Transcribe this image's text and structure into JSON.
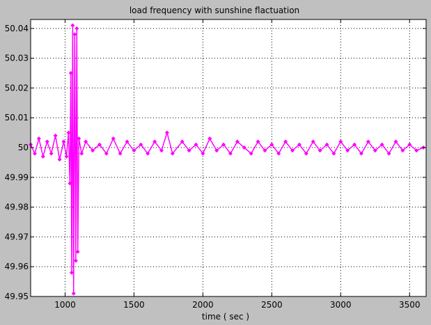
{
  "chart_data": {
    "type": "line",
    "title": "load frequency with sunshine flactuation",
    "xlabel": "time ( sec )",
    "ylabel": "",
    "xlim": [
      750,
      3620
    ],
    "ylim": [
      49.95,
      50.043
    ],
    "xticks": [
      1000,
      1500,
      2000,
      2500,
      3000,
      3500
    ],
    "yticks": [
      49.95,
      49.96,
      49.97,
      49.98,
      49.99,
      50,
      50.01,
      50.02,
      50.03,
      50.04
    ],
    "xtick_labels": [
      "1000",
      "1500",
      "2000",
      "2500",
      "3000",
      "3500"
    ],
    "ytick_labels": [
      "49.95",
      "49.96",
      "49.97",
      "49.98",
      "49.99",
      "50",
      "50.01",
      "50.02",
      "50.03",
      "50.04"
    ],
    "grid": true,
    "legend": "none",
    "series": [
      {
        "color": "#ff00ff",
        "marker": "diamond",
        "x": [
          750,
          780,
          810,
          840,
          870,
          900,
          930,
          960,
          990,
          1010,
          1025,
          1035,
          1042,
          1048,
          1055,
          1062,
          1070,
          1078,
          1085,
          1092,
          1100,
          1120,
          1150,
          1200,
          1250,
          1300,
          1350,
          1400,
          1450,
          1500,
          1550,
          1600,
          1650,
          1700,
          1740,
          1780,
          1850,
          1900,
          1950,
          2000,
          2050,
          2100,
          2150,
          2200,
          2250,
          2300,
          2350,
          2400,
          2450,
          2500,
          2550,
          2600,
          2650,
          2700,
          2750,
          2800,
          2850,
          2900,
          2950,
          3000,
          3050,
          3100,
          3150,
          3200,
          3250,
          3300,
          3350,
          3400,
          3450,
          3500,
          3550,
          3600
        ],
        "y": [
          50.001,
          49.998,
          50.003,
          49.997,
          50.002,
          49.998,
          50.004,
          49.996,
          50.002,
          49.997,
          50.005,
          49.988,
          50.025,
          49.958,
          50.041,
          49.951,
          50.038,
          49.962,
          50.04,
          49.965,
          50.003,
          49.998,
          50.002,
          49.999,
          50.001,
          49.998,
          50.003,
          49.998,
          50.002,
          49.999,
          50.001,
          49.998,
          50.002,
          49.999,
          50.005,
          49.998,
          50.002,
          49.999,
          50.001,
          49.998,
          50.003,
          49.999,
          50.001,
          49.998,
          50.002,
          50.0,
          49.998,
          50.002,
          49.999,
          50.001,
          49.998,
          50.002,
          49.999,
          50.001,
          49.998,
          50.002,
          49.999,
          50.001,
          49.998,
          50.002,
          49.999,
          50.001,
          49.998,
          50.002,
          49.999,
          50.001,
          49.998,
          50.002,
          49.999,
          50.001,
          49.999,
          50.0
        ]
      }
    ]
  }
}
